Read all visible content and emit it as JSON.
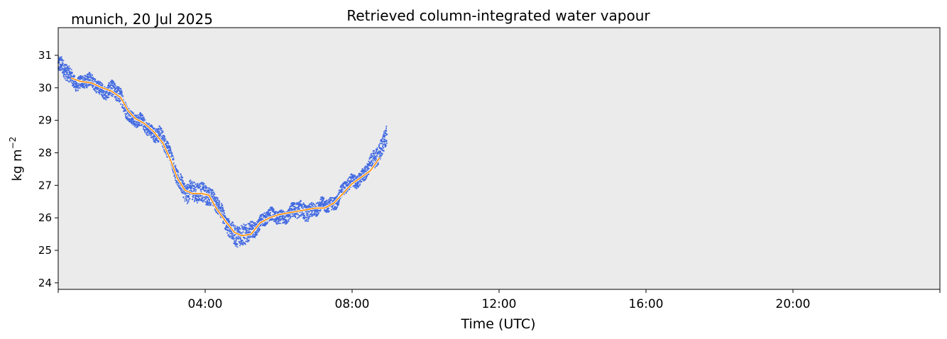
{
  "chart_data": {
    "type": "scatter",
    "title": "Retrieved column-integrated water vapour",
    "location_date": "munich, 20 Jul 2025",
    "xlabel": "Time (UTC)",
    "ylabel": "kg m",
    "ylabel_sup": "−2",
    "xlim_hours": [
      0,
      24
    ],
    "ylim": [
      23.8,
      31.85
    ],
    "x_ticks": [
      {
        "hour": 4,
        "label": "04:00"
      },
      {
        "hour": 8,
        "label": "08:00"
      },
      {
        "hour": 12,
        "label": "12:00"
      },
      {
        "hour": 16,
        "label": "16:00"
      },
      {
        "hour": 20,
        "label": "20:00"
      }
    ],
    "x_minor_ticks_hours": [
      0,
      24
    ],
    "y_ticks": [
      24,
      25,
      26,
      27,
      28,
      29,
      30,
      31
    ],
    "grid": false,
    "plot_background": "#ebebeb",
    "series": [
      {
        "kind": "raw-scatter",
        "color": "#4169e1",
        "x_hours": [
          0.0,
          0.1,
          0.25,
          0.5,
          0.75,
          1.0,
          1.25,
          1.5,
          1.75,
          2.0,
          2.25,
          2.5,
          2.75,
          3.0,
          3.25,
          3.5,
          3.75,
          4.0,
          4.25,
          4.5,
          4.75,
          5.0,
          5.25,
          5.5,
          5.75,
          6.0,
          6.25,
          6.5,
          6.75,
          7.0,
          7.25,
          7.5,
          7.75,
          8.0,
          8.25,
          8.5,
          8.75,
          8.95
        ],
        "y": [
          30.7,
          30.6,
          30.4,
          30.2,
          30.2,
          30.1,
          29.95,
          29.9,
          29.6,
          29.1,
          28.9,
          28.7,
          28.6,
          28.0,
          27.3,
          26.75,
          26.75,
          26.85,
          26.5,
          26.0,
          25.6,
          25.35,
          25.6,
          25.9,
          26.0,
          26.05,
          26.1,
          26.2,
          26.25,
          26.25,
          26.35,
          26.5,
          26.8,
          27.1,
          27.3,
          27.55,
          28.0,
          28.7
        ],
        "spread": [
          0.25,
          0.25,
          0.25,
          0.2,
          0.2,
          0.2,
          0.2,
          0.25,
          0.25,
          0.2,
          0.2,
          0.2,
          0.25,
          0.25,
          0.25,
          0.3,
          0.3,
          0.3,
          0.25,
          0.25,
          0.3,
          0.35,
          0.25,
          0.2,
          0.2,
          0.2,
          0.2,
          0.25,
          0.25,
          0.2,
          0.2,
          0.2,
          0.2,
          0.2,
          0.2,
          0.25,
          0.3,
          0.3
        ]
      },
      {
        "kind": "smoothed-line",
        "color": "#ff8c00",
        "x_hours": [
          0.35,
          0.6,
          0.9,
          1.2,
          1.45,
          1.7,
          1.9,
          2.1,
          2.35,
          2.6,
          2.85,
          3.05,
          3.25,
          3.45,
          3.65,
          3.9,
          4.1,
          4.3,
          4.55,
          4.8,
          5.0,
          5.25,
          5.5,
          5.75,
          6.0,
          6.25,
          6.5,
          6.75,
          7.0,
          7.25,
          7.5,
          7.75,
          8.0,
          8.25,
          8.5,
          8.75
        ],
        "y": [
          30.3,
          30.2,
          30.15,
          30.0,
          29.9,
          29.7,
          29.3,
          29.05,
          28.9,
          28.65,
          28.3,
          27.8,
          27.2,
          26.85,
          26.75,
          26.75,
          26.7,
          26.3,
          25.9,
          25.55,
          25.45,
          25.5,
          25.85,
          26.0,
          26.1,
          26.15,
          26.2,
          26.25,
          26.3,
          26.3,
          26.45,
          26.75,
          27.05,
          27.25,
          27.45,
          27.85
        ]
      }
    ]
  }
}
